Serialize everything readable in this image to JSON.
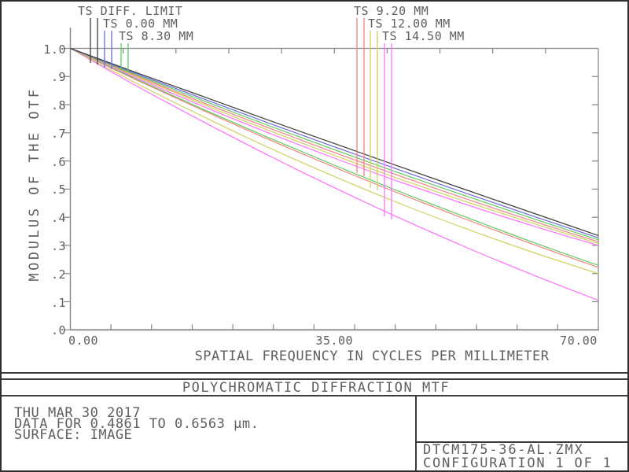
{
  "window": {
    "background": "#ffffff",
    "border_color": "#2e2e2e"
  },
  "colors": {
    "text": "#5f5f5f",
    "axis": "#8c8c8c",
    "rule": "#3c3c3c",
    "diff_limit": "#3c3c3c",
    "field_0_00": "#6a6ae0",
    "field_8_30": "#5ecc5e",
    "field_9_20": "#f28080",
    "field_12_00": "#d0d060",
    "field_14_50": "#ff6eff"
  },
  "legend": {
    "left": [
      {
        "label": "TS DIFF. LIMIT",
        "color": "#3c3c3c"
      },
      {
        "label": "TS 0.00 MM",
        "color": "#6a6ae0"
      },
      {
        "label": "TS 8.30 MM",
        "color": "#5ecc5e"
      }
    ],
    "right": [
      {
        "label": "TS 9.20 MM",
        "color": "#f28080"
      },
      {
        "label": "TS 12.00 MM",
        "color": "#d0d060"
      },
      {
        "label": "TS 14.50 MM",
        "color": "#ff6eff"
      }
    ]
  },
  "chart_data": {
    "type": "line",
    "title": "POLYCHROMATIC DIFFRACTION MTF",
    "xlabel": "SPATIAL FREQUENCY IN CYCLES PER MILLIMETER",
    "ylabel": "MODULUS OF THE OTF",
    "xlim": [
      0,
      70
    ],
    "ylim": [
      0,
      1
    ],
    "grid": false,
    "legend_position": "top",
    "x_ticks": [
      {
        "value": 0,
        "label": "0.00"
      },
      {
        "value": 35,
        "label": "35.00"
      },
      {
        "value": 70,
        "label": "70.00"
      }
    ],
    "y_ticks": [
      {
        "value": 1.0,
        "label": "1.0"
      },
      {
        "value": 0.9,
        "label": ".9"
      },
      {
        "value": 0.8,
        "label": ".8"
      },
      {
        "value": 0.7,
        "label": ".7"
      },
      {
        "value": 0.6,
        "label": ".6"
      },
      {
        "value": 0.5,
        "label": ".5"
      },
      {
        "value": 0.4,
        "label": ".4"
      },
      {
        "value": 0.3,
        "label": ".3"
      },
      {
        "value": 0.2,
        "label": ".2"
      },
      {
        "value": 0.1,
        "label": ".1"
      },
      {
        "value": 0.0,
        "label": ".0"
      }
    ],
    "x": [
      0,
      8.75,
      17.5,
      26.25,
      35,
      43.75,
      52.5,
      61.25,
      70
    ],
    "series": [
      {
        "name": "TS 14.50 MM tangential",
        "color": "#ff6eff",
        "values": [
          1.0,
          0.867,
          0.741,
          0.62,
          0.505,
          0.396,
          0.293,
          0.196,
          0.105
        ]
      },
      {
        "name": "TS 12.00 MM tangential",
        "color": "#d0d060",
        "values": [
          1.0,
          0.876,
          0.759,
          0.648,
          0.545,
          0.448,
          0.359,
          0.276,
          0.2
        ]
      },
      {
        "name": "TS 9.20 MM tangential",
        "color": "#f28080",
        "values": [
          1.0,
          0.888,
          0.781,
          0.677,
          0.578,
          0.483,
          0.392,
          0.305,
          0.222
        ]
      },
      {
        "name": "TS 8.30 MM tangential",
        "color": "#5ecc5e",
        "values": [
          1.0,
          0.891,
          0.785,
          0.683,
          0.585,
          0.49,
          0.4,
          0.312,
          0.229
        ]
      },
      {
        "name": "TS 14.50 MM sagittal",
        "color": "#ff6eff",
        "values": [
          1.0,
          0.895,
          0.795,
          0.7,
          0.61,
          0.525,
          0.445,
          0.37,
          0.3
        ]
      },
      {
        "name": "TS 12.00 MM sagittal",
        "color": "#d0d060",
        "values": [
          1.0,
          0.899,
          0.802,
          0.709,
          0.62,
          0.535,
          0.455,
          0.379,
          0.307
        ]
      },
      {
        "name": "TS 9.20 MM sagittal",
        "color": "#f28080",
        "values": [
          1.0,
          0.903,
          0.808,
          0.718,
          0.63,
          0.546,
          0.465,
          0.387,
          0.313
        ]
      },
      {
        "name": "TS 8.30 MM sagittal",
        "color": "#5ecc5e",
        "values": [
          1.0,
          0.906,
          0.815,
          0.726,
          0.64,
          0.556,
          0.475,
          0.396,
          0.32
        ]
      },
      {
        "name": "TS 0.00 MM",
        "color": "#6a6ae0",
        "values": [
          1.0,
          0.91,
          0.822,
          0.735,
          0.65,
          0.567,
          0.485,
          0.405,
          0.327
        ]
      },
      {
        "name": "TS DIFF. LIMIT",
        "color": "#3c3c3c",
        "values": [
          1.0,
          0.914,
          0.83,
          0.745,
          0.662,
          0.579,
          0.497,
          0.416,
          0.335
        ]
      }
    ]
  },
  "title_band": {
    "text": "POLYCHROMATIC DIFFRACTION MTF"
  },
  "info": {
    "line1": "THU MAR 30 2017",
    "line2": "DATA FOR 0.4861 TO 0.6563 µm.",
    "line3": "SURFACE: IMAGE"
  },
  "footer": {
    "filename": "DTCM175-36-AL.ZMX",
    "configuration": "CONFIGURATION 1 OF 1"
  }
}
